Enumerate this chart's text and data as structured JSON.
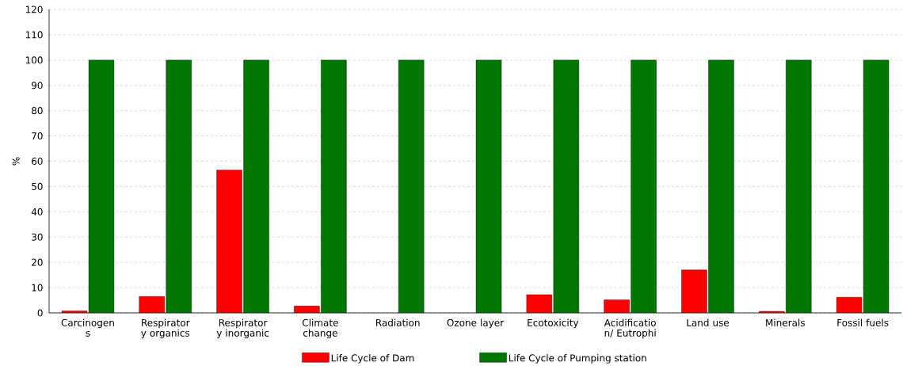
{
  "chart_data": {
    "type": "bar",
    "ylabel": "%",
    "categories": [
      "Carcinogen s",
      "Respirator y organics",
      "Respirator y inorganic",
      "Climate change",
      "Radiation",
      "Ozone layer",
      "Ecotoxicity",
      "Acidificatio n/ Eutrophi",
      "Land use",
      "Minerals",
      "Fossil fuels"
    ],
    "series": [
      {
        "name": "Life Cycle of Dam",
        "color": "#ff0000",
        "values": [
          0.8,
          6.5,
          56.5,
          2.7,
          0,
          0,
          7.2,
          5.2,
          17,
          0.6,
          6.2
        ]
      },
      {
        "name": "Life Cycle of Pumping station",
        "color": "#007700",
        "values": [
          100,
          100,
          100,
          100,
          100,
          100,
          100,
          100,
          100,
          100,
          100
        ]
      }
    ],
    "ylim": [
      0,
      120
    ],
    "yticks": [
      0,
      10,
      20,
      30,
      40,
      50,
      60,
      70,
      80,
      90,
      100,
      110,
      120
    ],
    "grid": "y",
    "legend": "bottom"
  }
}
